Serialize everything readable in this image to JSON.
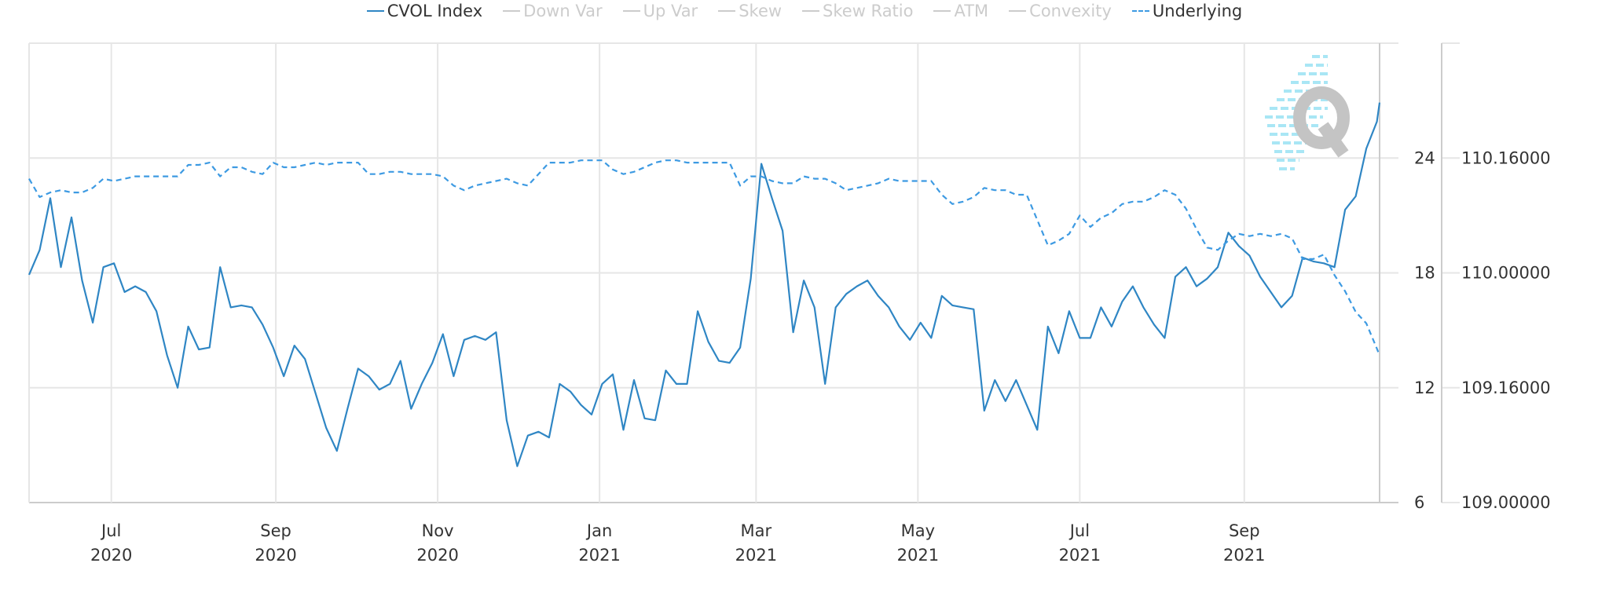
{
  "legend": [
    {
      "label": "CVOL Index",
      "active": true,
      "style": "solid"
    },
    {
      "label": "Down Var",
      "active": false,
      "style": "solid"
    },
    {
      "label": "Up Var",
      "active": false,
      "style": "solid"
    },
    {
      "label": "Skew",
      "active": false,
      "style": "solid"
    },
    {
      "label": "Skew Ratio",
      "active": false,
      "style": "solid"
    },
    {
      "label": "ATM",
      "active": false,
      "style": "solid"
    },
    {
      "label": "Convexity",
      "active": false,
      "style": "solid"
    },
    {
      "label": "Underlying",
      "active": true,
      "style": "dashed"
    }
  ],
  "logo": {
    "text": "Q"
  },
  "colors": {
    "cvol": "#2f86c4",
    "underlying": "#3d9ae2",
    "grid": "#e6e6e6",
    "axis": "#cccccc",
    "inactive": "#cccccc",
    "logo_gray": "#c4c4c4",
    "logo_cyan": "#a9e6f5"
  },
  "chart_data": {
    "type": "line",
    "title": "",
    "grid": true,
    "legend_placement": "top",
    "xlim": [
      "2020-05-31",
      "2021-10-22"
    ],
    "x_ticks": [
      {
        "date": "2020-07-01",
        "month": "Jul",
        "year": "2020"
      },
      {
        "date": "2020-09-01",
        "month": "Sep",
        "year": "2020"
      },
      {
        "date": "2020-11-01",
        "month": "Nov",
        "year": "2020"
      },
      {
        "date": "2021-01-01",
        "month": "Jan",
        "year": "2021"
      },
      {
        "date": "2021-03-01",
        "month": "Mar",
        "year": "2021"
      },
      {
        "date": "2021-05-01",
        "month": "May",
        "year": "2021"
      },
      {
        "date": "2021-07-01",
        "month": "Jul",
        "year": "2021"
      },
      {
        "date": "2021-09-01",
        "month": "Sep",
        "year": "2021"
      }
    ],
    "y_axis_cvol": {
      "ylim": [
        6,
        30
      ],
      "ticks": [
        {
          "value": 6,
          "label": "6"
        },
        {
          "value": 12,
          "label": "12"
        },
        {
          "value": 18,
          "label": "18"
        },
        {
          "value": 24,
          "label": "24"
        }
      ]
    },
    "y_axis_underlying": {
      "ylim": [
        109,
        111
      ],
      "ticks": [
        {
          "value": 109,
          "label": "109.00000"
        },
        {
          "value": 109.5,
          "label": "109.16000"
        },
        {
          "value": 110,
          "label": "110.00000"
        },
        {
          "value": 110.5,
          "label": "110.16000"
        }
      ]
    },
    "dates": [
      "2020-05-31",
      "2020-06-04",
      "2020-06-08",
      "2020-06-12",
      "2020-06-16",
      "2020-06-20",
      "2020-06-24",
      "2020-06-28",
      "2020-07-02",
      "2020-07-06",
      "2020-07-10",
      "2020-07-14",
      "2020-07-18",
      "2020-07-22",
      "2020-07-26",
      "2020-07-30",
      "2020-08-03",
      "2020-08-07",
      "2020-08-11",
      "2020-08-15",
      "2020-08-19",
      "2020-08-23",
      "2020-08-27",
      "2020-08-31",
      "2020-09-04",
      "2020-09-08",
      "2020-09-12",
      "2020-09-16",
      "2020-09-20",
      "2020-09-24",
      "2020-09-28",
      "2020-10-02",
      "2020-10-06",
      "2020-10-10",
      "2020-10-14",
      "2020-10-18",
      "2020-10-22",
      "2020-10-26",
      "2020-10-30",
      "2020-11-03",
      "2020-11-07",
      "2020-11-11",
      "2020-11-15",
      "2020-11-19",
      "2020-11-23",
      "2020-11-27",
      "2020-12-01",
      "2020-12-05",
      "2020-12-09",
      "2020-12-13",
      "2020-12-17",
      "2020-12-21",
      "2020-12-25",
      "2020-12-29",
      "2021-01-02",
      "2021-01-06",
      "2021-01-10",
      "2021-01-14",
      "2021-01-18",
      "2021-01-22",
      "2021-01-26",
      "2021-01-30",
      "2021-02-03",
      "2021-02-07",
      "2021-02-11",
      "2021-02-15",
      "2021-02-19",
      "2021-02-23",
      "2021-02-27",
      "2021-03-03",
      "2021-03-07",
      "2021-03-11",
      "2021-03-15",
      "2021-03-19",
      "2021-03-23",
      "2021-03-27",
      "2021-03-31",
      "2021-04-04",
      "2021-04-08",
      "2021-04-12",
      "2021-04-16",
      "2021-04-20",
      "2021-04-24",
      "2021-04-28",
      "2021-05-02",
      "2021-05-06",
      "2021-05-10",
      "2021-05-14",
      "2021-05-18",
      "2021-05-22",
      "2021-05-26",
      "2021-05-30",
      "2021-06-03",
      "2021-06-07",
      "2021-06-11",
      "2021-06-15",
      "2021-06-19",
      "2021-06-23",
      "2021-06-27",
      "2021-07-01",
      "2021-07-05",
      "2021-07-09",
      "2021-07-13",
      "2021-07-17",
      "2021-07-21",
      "2021-07-25",
      "2021-07-29",
      "2021-08-02",
      "2021-08-06",
      "2021-08-10",
      "2021-08-14",
      "2021-08-18",
      "2021-08-22",
      "2021-08-26",
      "2021-08-30",
      "2021-09-03",
      "2021-09-07",
      "2021-09-11",
      "2021-09-15",
      "2021-09-19",
      "2021-09-23",
      "2021-09-27",
      "2021-10-01",
      "2021-10-05",
      "2021-10-09",
      "2021-10-13",
      "2021-10-17",
      "2021-10-21",
      "2021-10-22"
    ],
    "series": [
      {
        "name": "CVOL Index",
        "axis": "cvol",
        "style": "solid",
        "values": [
          17.9,
          19.2,
          21.9,
          18.3,
          20.9,
          17.6,
          15.4,
          18.3,
          18.5,
          17.0,
          17.3,
          17.0,
          16.0,
          13.7,
          12.0,
          15.2,
          14.0,
          14.1,
          18.3,
          16.2,
          16.3,
          16.2,
          15.3,
          14.1,
          12.6,
          14.2,
          13.5,
          11.7,
          9.9,
          8.7,
          10.9,
          13.0,
          12.6,
          11.9,
          12.2,
          13.4,
          10.9,
          12.2,
          13.3,
          14.8,
          12.6,
          14.5,
          14.7,
          14.5,
          14.9,
          10.3,
          7.9,
          9.5,
          9.7,
          9.4,
          12.2,
          11.8,
          11.1,
          10.6,
          12.2,
          12.7,
          9.8,
          12.4,
          10.4,
          10.3,
          12.9,
          12.2,
          12.2,
          16.0,
          14.4,
          13.4,
          13.3,
          14.1,
          17.7,
          23.7,
          21.9,
          20.2,
          14.9,
          17.6,
          16.2,
          12.2,
          16.2,
          16.9,
          17.3,
          17.6,
          16.8,
          16.2,
          15.2,
          14.5,
          15.4,
          14.6,
          16.8,
          16.3,
          16.2,
          16.1,
          10.8,
          12.4,
          11.3,
          12.4,
          11.1,
          9.8,
          15.2,
          13.8,
          16.0,
          14.6,
          14.6,
          16.2,
          15.2,
          16.5,
          17.3,
          16.2,
          15.3,
          14.6,
          17.8,
          18.3,
          17.3,
          17.7,
          18.3,
          20.1,
          19.4,
          18.9,
          17.8,
          17.0,
          16.2,
          16.8,
          18.8,
          18.6,
          18.5,
          18.3,
          21.3,
          22.0,
          24.5,
          25.9,
          26.9
        ]
      },
      {
        "name": "Underlying",
        "axis": "underlying",
        "style": "dashed",
        "values": [
          110.41,
          110.33,
          110.35,
          110.36,
          110.35,
          110.35,
          110.37,
          110.41,
          110.4,
          110.41,
          110.42,
          110.42,
          110.42,
          110.42,
          110.42,
          110.47,
          110.47,
          110.48,
          110.42,
          110.46,
          110.46,
          110.44,
          110.43,
          110.48,
          110.46,
          110.46,
          110.47,
          110.48,
          110.47,
          110.48,
          110.48,
          110.48,
          110.43,
          110.43,
          110.44,
          110.44,
          110.43,
          110.43,
          110.43,
          110.42,
          110.38,
          110.36,
          110.38,
          110.39,
          110.4,
          110.41,
          110.39,
          110.38,
          110.43,
          110.48,
          110.48,
          110.48,
          110.49,
          110.49,
          110.49,
          110.45,
          110.43,
          110.44,
          110.46,
          110.48,
          110.49,
          110.49,
          110.48,
          110.48,
          110.48,
          110.48,
          110.48,
          110.38,
          110.42,
          110.42,
          110.4,
          110.39,
          110.39,
          110.42,
          110.41,
          110.41,
          110.39,
          110.36,
          110.37,
          110.38,
          110.39,
          110.41,
          110.4,
          110.4,
          110.4,
          110.4,
          110.34,
          110.3,
          110.31,
          110.33,
          110.37,
          110.36,
          110.36,
          110.34,
          110.34,
          110.23,
          110.12,
          110.14,
          110.17,
          110.25,
          110.2,
          110.24,
          110.26,
          110.3,
          110.31,
          110.31,
          110.33,
          110.36,
          110.34,
          110.28,
          110.19,
          110.11,
          110.1,
          110.14,
          110.17,
          110.16,
          110.17,
          110.16,
          110.17,
          110.15,
          110.06,
          110.06,
          110.08,
          109.99,
          109.92,
          109.83,
          109.78,
          109.67,
          109.64
        ]
      }
    ]
  }
}
